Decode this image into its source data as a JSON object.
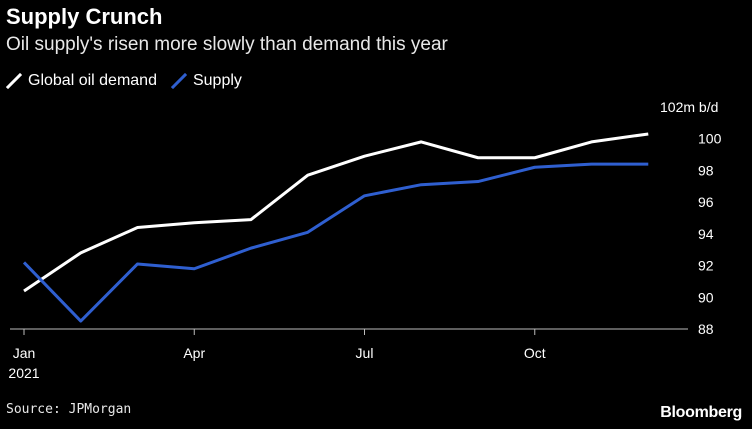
{
  "title": "Supply Crunch",
  "subtitle": "Oil supply's risen more slowly than demand this year",
  "legend": [
    {
      "label": "Global oil demand",
      "color": "#ffffff"
    },
    {
      "label": "Supply",
      "color": "#2f5fd0"
    }
  ],
  "source": "Source: JPMorgan",
  "brand": "Bloomberg",
  "chart_data": {
    "type": "line",
    "title": "Supply Crunch",
    "subtitle": "Oil supply's risen more slowly than demand this year",
    "x_labels": [
      "Jan\n2021",
      "Apr",
      "Jul",
      "Oct"
    ],
    "x_label_months": [
      1,
      4,
      7,
      10
    ],
    "x": [
      1,
      2,
      3,
      4,
      5,
      6,
      7,
      8,
      9,
      10,
      11,
      12
    ],
    "xlim": [
      1,
      12.7
    ],
    "ylabel": "102m b/d",
    "ylim": [
      88,
      102
    ],
    "yticks": [
      88,
      90,
      92,
      94,
      96,
      98,
      100
    ],
    "ytick_labels": [
      "88",
      "90",
      "92",
      "94",
      "96",
      "98",
      "100"
    ],
    "ymax_label": "102m b/d",
    "series": [
      {
        "name": "Global oil demand",
        "color": "#ffffff",
        "values": [
          90.4,
          92.8,
          94.4,
          94.7,
          94.9,
          97.7,
          98.9,
          99.8,
          98.8,
          98.8,
          99.8,
          100.3
        ]
      },
      {
        "name": "Supply",
        "color": "#2f5fd0",
        "values": [
          92.2,
          88.5,
          92.1,
          91.8,
          93.1,
          94.1,
          96.4,
          97.1,
          97.3,
          98.2,
          98.4,
          98.4
        ]
      }
    ],
    "grid": false,
    "legend_position": "top-left"
  }
}
